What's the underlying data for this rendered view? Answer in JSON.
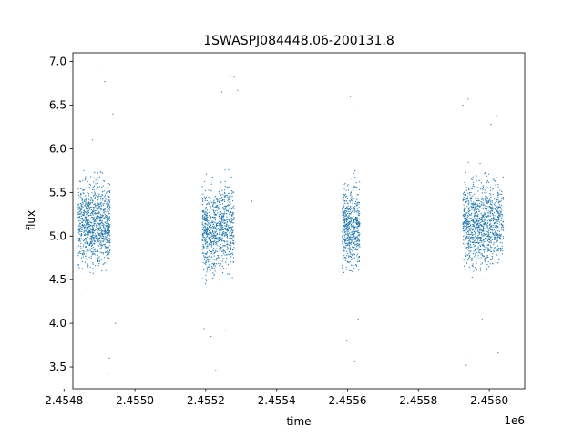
{
  "chart_data": {
    "type": "scatter",
    "title": "1SWASPJ084448.06-200131.8",
    "xlabel": "time",
    "ylabel": "flux",
    "x_offset_label": "1e6",
    "xlim": [
      2454825,
      2456100
    ],
    "ylim": [
      3.25,
      7.1
    ],
    "x_ticks": [
      2454800,
      2455000,
      2455200,
      2455400,
      2455600,
      2455800,
      2456000
    ],
    "x_tick_labels": [
      "2.4548",
      "2.4550",
      "2.4552",
      "2.4554",
      "2.4556",
      "2.4558",
      "2.4560"
    ],
    "y_ticks": [
      3.5,
      4.0,
      4.5,
      5.0,
      5.5,
      6.0,
      6.5,
      7.0
    ],
    "y_tick_labels": [
      "3.5",
      "4.0",
      "4.5",
      "5.0",
      "5.5",
      "6.0",
      "6.5",
      "7.0"
    ],
    "grid": false,
    "marker_color": "#1f77b4",
    "point_groups": [
      {
        "x_range": [
          2454840,
          2454885
        ],
        "y_center": 5.15,
        "spread": 0.32,
        "count": 500
      },
      {
        "x_range": [
          2454885,
          2454930
        ],
        "y_center": 5.15,
        "spread": 0.33,
        "count": 500
      },
      {
        "x_range": [
          2455190,
          2455230
        ],
        "y_center": 5.05,
        "spread": 0.32,
        "count": 420
      },
      {
        "x_range": [
          2455230,
          2455280
        ],
        "y_center": 5.1,
        "spread": 0.33,
        "count": 460
      },
      {
        "x_range": [
          2455585,
          2455635
        ],
        "y_center": 5.1,
        "spread": 0.32,
        "count": 600
      },
      {
        "x_range": [
          2455925,
          2455970
        ],
        "y_center": 5.15,
        "spread": 0.33,
        "count": 450
      },
      {
        "x_range": [
          2455970,
          2456040
        ],
        "y_center": 5.15,
        "spread": 0.33,
        "count": 600
      }
    ],
    "outliers": [
      {
        "x": 2454905,
        "y": 6.95
      },
      {
        "x": 2454915,
        "y": 6.77
      },
      {
        "x": 2454938,
        "y": 6.4
      },
      {
        "x": 2454922,
        "y": 3.42
      },
      {
        "x": 2454928,
        "y": 3.6
      },
      {
        "x": 2454945,
        "y": 4.0
      },
      {
        "x": 2454880,
        "y": 6.1
      },
      {
        "x": 2454865,
        "y": 4.4
      },
      {
        "x": 2455245,
        "y": 6.65
      },
      {
        "x": 2455270,
        "y": 6.83
      },
      {
        "x": 2455280,
        "y": 6.82
      },
      {
        "x": 2455290,
        "y": 6.67
      },
      {
        "x": 2455228,
        "y": 3.46
      },
      {
        "x": 2455215,
        "y": 3.85
      },
      {
        "x": 2455195,
        "y": 3.94
      },
      {
        "x": 2455255,
        "y": 3.92
      },
      {
        "x": 2455330,
        "y": 5.4
      },
      {
        "x": 2455608,
        "y": 6.6
      },
      {
        "x": 2455612,
        "y": 6.48
      },
      {
        "x": 2455620,
        "y": 3.56
      },
      {
        "x": 2455598,
        "y": 3.8
      },
      {
        "x": 2455630,
        "y": 4.05
      },
      {
        "x": 2455925,
        "y": 6.5
      },
      {
        "x": 2455940,
        "y": 6.57
      },
      {
        "x": 2455935,
        "y": 3.52
      },
      {
        "x": 2455932,
        "y": 3.6
      },
      {
        "x": 2456020,
        "y": 6.38
      },
      {
        "x": 2456005,
        "y": 6.28
      },
      {
        "x": 2456025,
        "y": 3.66
      },
      {
        "x": 2455980,
        "y": 4.05
      }
    ]
  }
}
